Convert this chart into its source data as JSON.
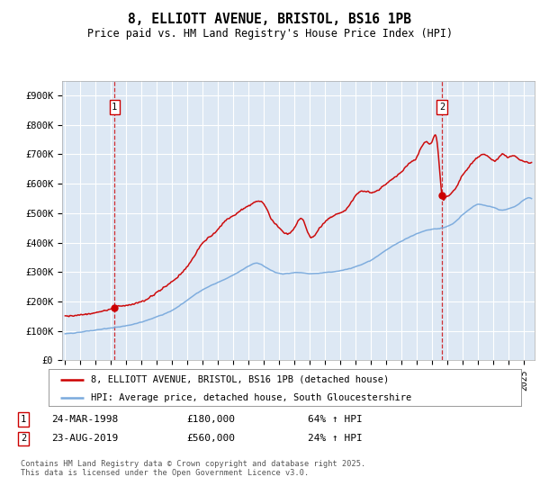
{
  "title": "8, ELLIOTT AVENUE, BRISTOL, BS16 1PB",
  "subtitle": "Price paid vs. HM Land Registry's House Price Index (HPI)",
  "ylabel_ticks": [
    "£0",
    "£100K",
    "£200K",
    "£300K",
    "£400K",
    "£500K",
    "£600K",
    "£700K",
    "£800K",
    "£900K"
  ],
  "ytick_values": [
    0,
    100000,
    200000,
    300000,
    400000,
    500000,
    600000,
    700000,
    800000,
    900000
  ],
  "ylim": [
    0,
    950000
  ],
  "xlim_start": 1994.8,
  "xlim_end": 2025.7,
  "red_color": "#cc0000",
  "blue_color": "#7aaadd",
  "bg_color": "#ffffff",
  "plot_bg_color": "#dde8f4",
  "grid_color": "#ffffff",
  "legend_label_red": "8, ELLIOTT AVENUE, BRISTOL, BS16 1PB (detached house)",
  "legend_label_blue": "HPI: Average price, detached house, South Gloucestershire",
  "annotation1_date": "24-MAR-1998",
  "annotation1_price": "£180,000",
  "annotation1_hpi": "64% ↑ HPI",
  "annotation2_date": "23-AUG-2019",
  "annotation2_price": "£560,000",
  "annotation2_hpi": "24% ↑ HPI",
  "footer": "Contains HM Land Registry data © Crown copyright and database right 2025.\nThis data is licensed under the Open Government Licence v3.0.",
  "sale1_x": 1998.23,
  "sale1_y": 180000,
  "sale2_x": 2019.64,
  "sale2_y": 560000
}
